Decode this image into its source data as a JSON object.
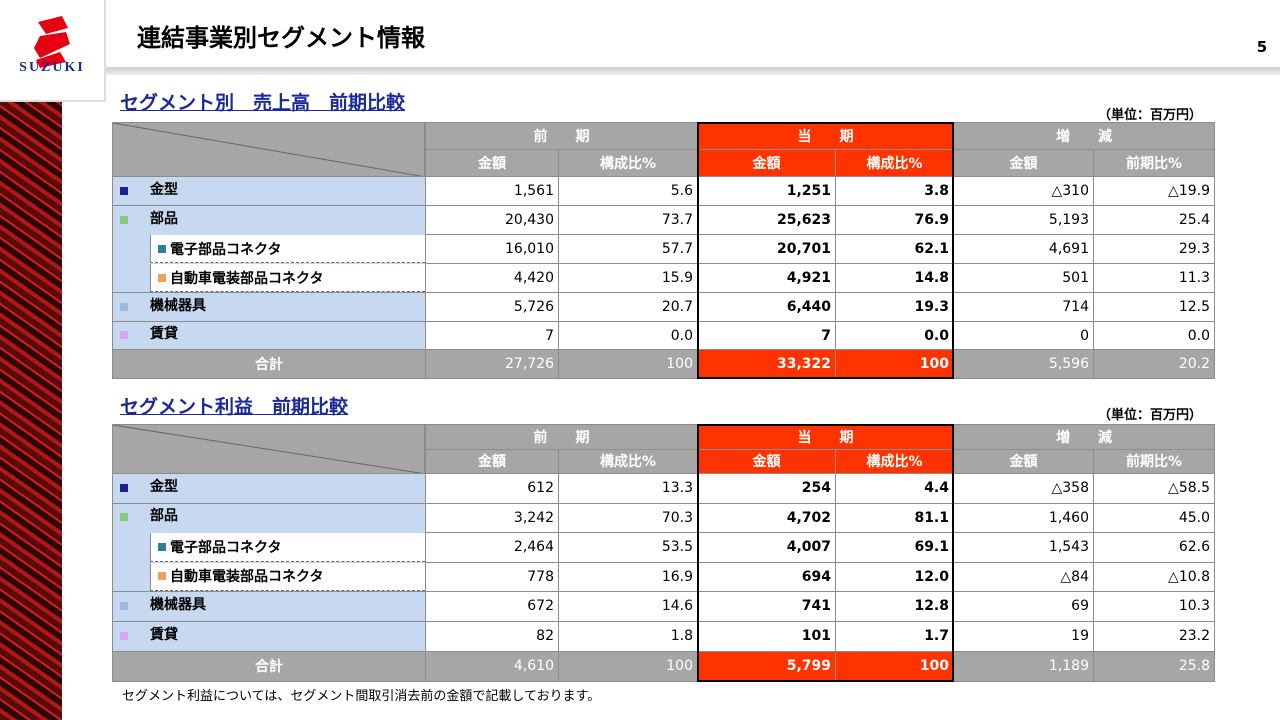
{
  "header": {
    "title": "連結事業別セグメント情報",
    "page": "5",
    "logo": "SUZUKI"
  },
  "sections": [
    {
      "title": "セグメント別　売上高　前期比較",
      "unit": "（単位：百万円）",
      "columns_top": [
        "前　　期",
        "当　　期",
        "増　　減"
      ],
      "columns_sub": [
        "金額",
        "構成比%",
        "金額",
        "構成比%",
        "金額",
        "前期比%"
      ],
      "rows": [
        {
          "label": "金型",
          "level": 0,
          "marker": "#1f1f8f",
          "values": [
            "1,561",
            "5.6",
            "1,251",
            "3.8",
            "△310",
            "△19.9"
          ]
        },
        {
          "label": "部品",
          "level": 0,
          "marker": "#86c97a",
          "values": [
            "20,430",
            "73.7",
            "25,623",
            "76.9",
            "5,193",
            "25.4"
          ]
        },
        {
          "label": "電子部品コネクタ",
          "level": 1,
          "marker": "#2f7f95",
          "values": [
            "16,010",
            "57.7",
            "20,701",
            "62.1",
            "4,691",
            "29.3"
          ]
        },
        {
          "label": "自動車電装部品コネクタ",
          "level": 1,
          "marker": "#f0a05a",
          "values": [
            "4,420",
            "15.9",
            "4,921",
            "14.8",
            "501",
            "11.3"
          ]
        },
        {
          "label": "機械器具",
          "level": 0,
          "marker": "#9dbbe0",
          "values": [
            "5,726",
            "20.7",
            "6,440",
            "19.3",
            "714",
            "12.5"
          ]
        },
        {
          "label": "賃貸",
          "level": 0,
          "marker": "#d6a6f2",
          "values": [
            "7",
            "0.0",
            "7",
            "0.0",
            "0",
            "0.0"
          ]
        }
      ],
      "total": {
        "label": "合計",
        "values": [
          "27,726",
          "100",
          "33,322",
          "100",
          "5,596",
          "20.2"
        ]
      }
    },
    {
      "title": "セグメント利益　前期比較",
      "unit": "（単位：百万円）",
      "columns_top": [
        "前　　期",
        "当　　期",
        "増　　減"
      ],
      "columns_sub": [
        "金額",
        "構成比%",
        "金額",
        "構成比%",
        "金額",
        "前期比%"
      ],
      "rows": [
        {
          "label": "金型",
          "level": 0,
          "marker": "#1f1f8f",
          "values": [
            "612",
            "13.3",
            "254",
            "4.4",
            "△358",
            "△58.5"
          ]
        },
        {
          "label": "部品",
          "level": 0,
          "marker": "#86c97a",
          "values": [
            "3,242",
            "70.3",
            "4,702",
            "81.1",
            "1,460",
            "45.0"
          ]
        },
        {
          "label": "電子部品コネクタ",
          "level": 1,
          "marker": "#2f7f95",
          "values": [
            "2,464",
            "53.5",
            "4,007",
            "69.1",
            "1,543",
            "62.6"
          ]
        },
        {
          "label": "自動車電装部品コネクタ",
          "level": 1,
          "marker": "#f0a05a",
          "values": [
            "778",
            "16.9",
            "694",
            "12.0",
            "△84",
            "△10.8"
          ]
        },
        {
          "label": "機械器具",
          "level": 0,
          "marker": "#9dbbe0",
          "values": [
            "672",
            "14.6",
            "741",
            "12.8",
            "69",
            "10.3"
          ]
        },
        {
          "label": "賃貸",
          "level": 0,
          "marker": "#d6a6f2",
          "values": [
            "82",
            "1.8",
            "101",
            "1.7",
            "19",
            "23.2"
          ]
        }
      ],
      "total": {
        "label": "合計",
        "values": [
          "4,610",
          "100",
          "5,799",
          "100",
          "1,189",
          "25.8"
        ]
      }
    }
  ],
  "footnote": "セグメント利益については、セグメント間取引消去前の金額で記載しております。"
}
